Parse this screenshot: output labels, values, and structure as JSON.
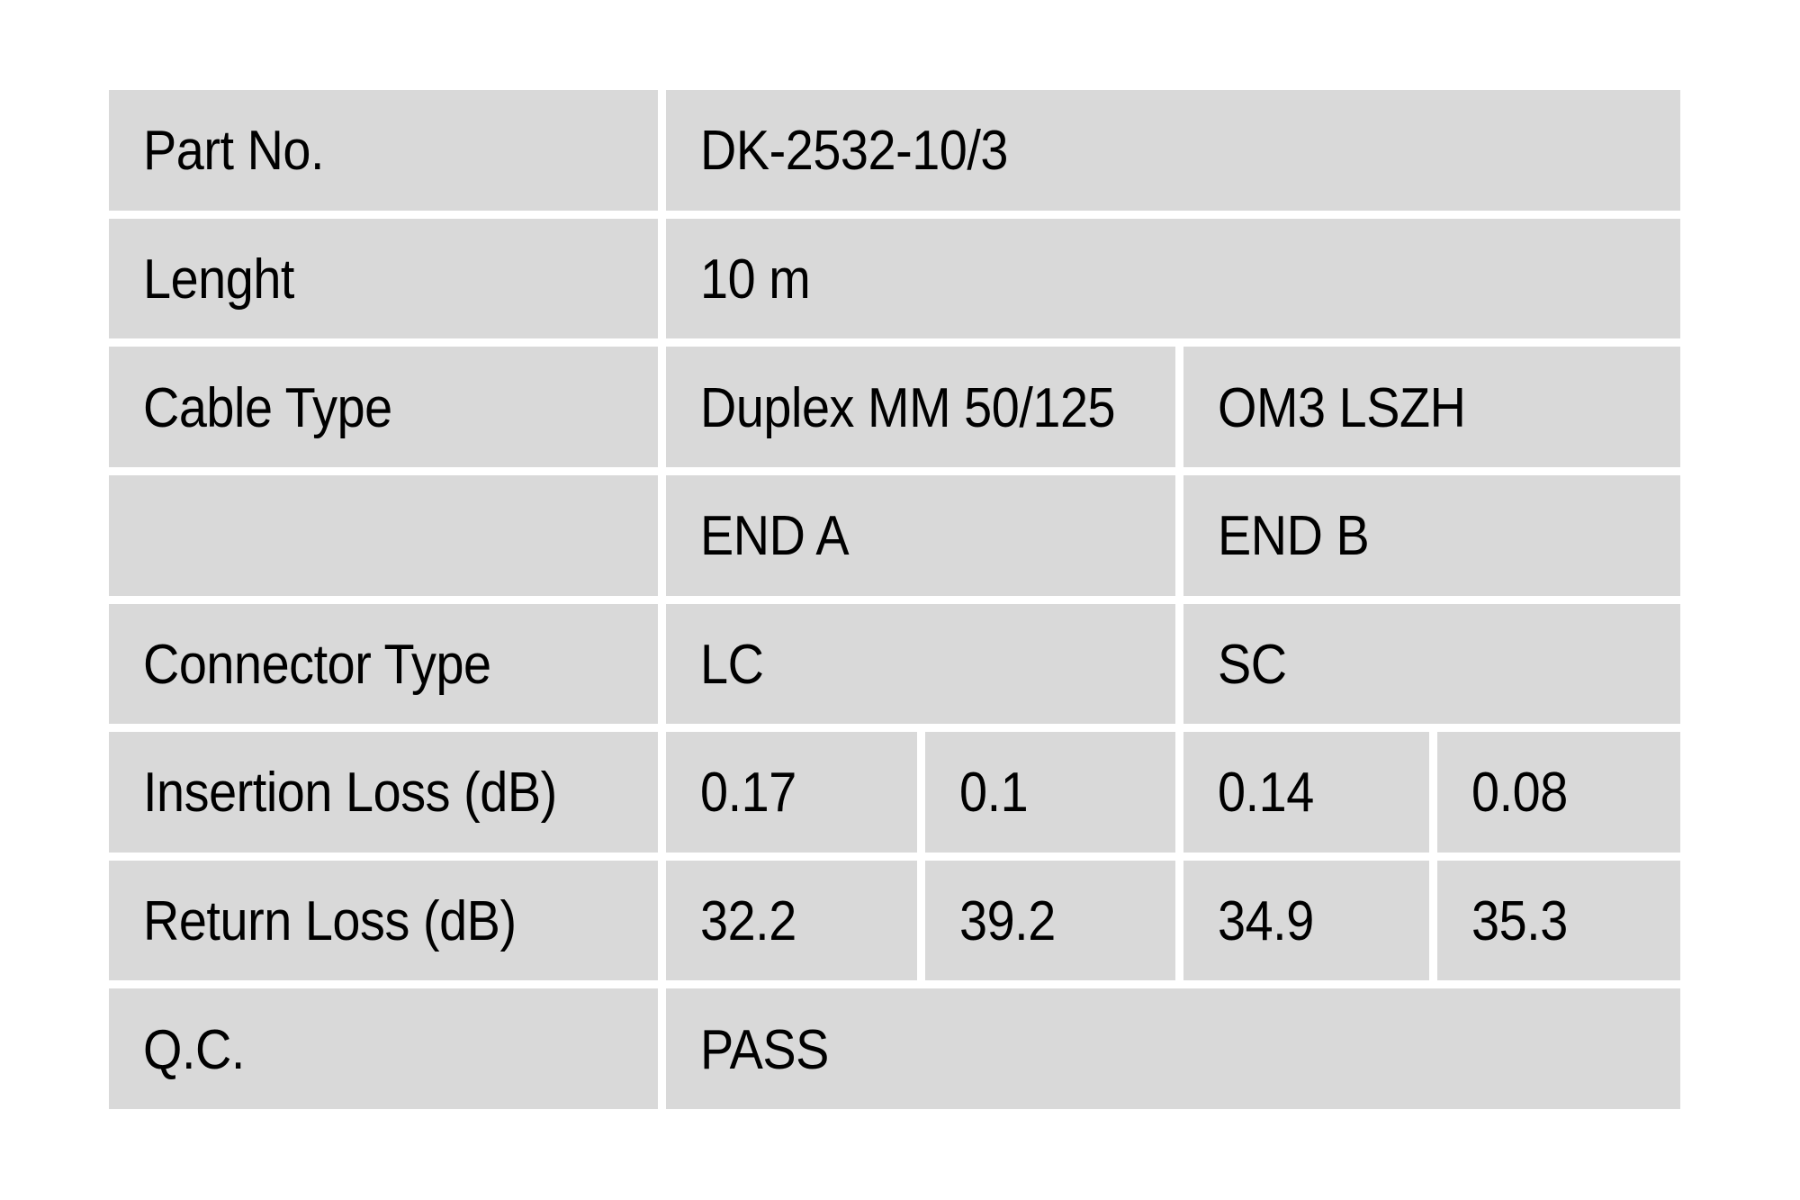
{
  "page": {
    "background_color": "#ffffff"
  },
  "table": {
    "cell_bg": "#d9d9d9",
    "gutter_color": "#ffffff",
    "text_color": "#000000",
    "columns": {
      "label_column": "attribute",
      "value_groups": [
        "END A",
        "END B"
      ]
    },
    "rows": [
      {
        "key": "part-no",
        "label": "Part No.",
        "cells": [
          {
            "text": "DK-2532-10/3",
            "span": "full"
          }
        ]
      },
      {
        "key": "lenght",
        "label": "Lenght",
        "cells": [
          {
            "text": "10 m",
            "span": "full"
          }
        ]
      },
      {
        "key": "cable-type",
        "label": "Cable Type",
        "cells": [
          {
            "text": "Duplex MM 50/125",
            "span": "half"
          },
          {
            "text": "OM3 LSZH",
            "span": "half"
          }
        ]
      },
      {
        "key": "end-header",
        "label": "",
        "cells": [
          {
            "text": "END A",
            "span": "half"
          },
          {
            "text": "END B",
            "span": "half"
          }
        ]
      },
      {
        "key": "connector-type",
        "label": "Connector Type",
        "cells": [
          {
            "text": "LC",
            "span": "half"
          },
          {
            "text": "SC",
            "span": "half"
          }
        ]
      },
      {
        "key": "insertion-loss",
        "label": "Insertion Loss (dB)",
        "cells": [
          {
            "text": "0.17",
            "span": "quarter"
          },
          {
            "text": "0.1",
            "span": "quarter"
          },
          {
            "text": "0.14",
            "span": "quarter"
          },
          {
            "text": "0.08",
            "span": "quarter"
          }
        ]
      },
      {
        "key": "return-loss",
        "label": "Return Loss (dB)",
        "cells": [
          {
            "text": "32.2",
            "span": "quarter"
          },
          {
            "text": "39.2",
            "span": "quarter"
          },
          {
            "text": "34.9",
            "span": "quarter"
          },
          {
            "text": "35.3",
            "span": "quarter"
          }
        ]
      },
      {
        "key": "qc",
        "label": "Q.C.",
        "cells": [
          {
            "text": "PASS",
            "span": "full"
          }
        ]
      }
    ]
  }
}
